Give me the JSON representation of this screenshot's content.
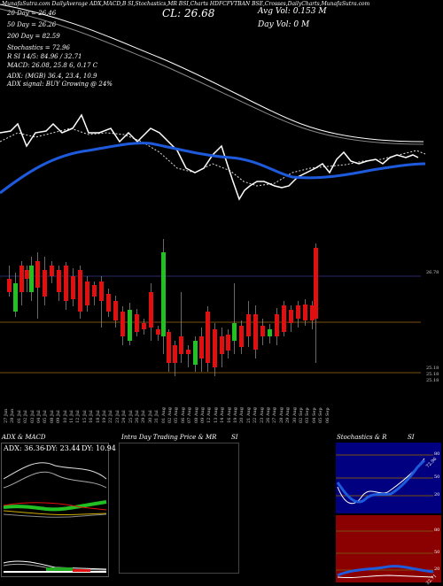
{
  "header": {
    "line1": "MunafaSutra.com DailyAverage ADX,MACD,B SI,Stochastics,MR BSI,Charts HDFCFVTBAN BSE,Crosses,DailyCharts,MunafaSutra.com",
    "cl": "CL: 26.68",
    "avg_vol": "Avg Vol: 0.153  M",
    "day_vol": "Day Vol: 0   M",
    "dma20": "20  Day = 26.46",
    "dma50": "50  Day = 26.26",
    "dma200": "200  Day = 82.59",
    "stochastics": "Stochastics = 72.96",
    "rsi": "R       SI 14/5: 84.96  /  32.71",
    "macd": "MACD: 26.08, 25.8          6, 0.17 C",
    "adx": "ADX:                         (MGB) 36.4, 23.4, 10.9",
    "adx_signal": "ADX  signal:                   BUY Growing @ 24%"
  },
  "price_labels": {
    "upper": "26.78",
    "lower1": "25.18",
    "lower2": "25.18",
    "lower3": "25.18"
  },
  "dates": [
    "27 Jun",
    "28 Jun",
    "01 Jul",
    "02 Jul",
    "03 Jul",
    "04 Jul",
    "05 Jul",
    "08 Jul",
    "09 Jul",
    "10 Jul",
    "11 Jul",
    "12 Jul",
    "15 Jul",
    "16 Jul",
    "18 Jul",
    "19 Jul",
    "22 Jul",
    "23 Jul",
    "24 Jul",
    "25 Jul",
    "26 Jul",
    "29 Jul",
    "30 Jul",
    "31 Jul",
    "01 Aug",
    "02 Aug",
    "05 Aug",
    "06 Aug",
    "07 Aug",
    "08 Aug",
    "09 Aug",
    "12 Aug",
    "13 Aug",
    "14 Aug",
    "16 Aug",
    "19 Aug",
    "20 Aug",
    "21 Aug",
    "22 Aug",
    "23 Aug",
    "26 Aug",
    "27 Aug",
    "28 Aug",
    "29 Aug",
    "30 Aug",
    "02 Sep",
    "03 Sep",
    "04 Sep",
    "05 Sep",
    "06 Sep"
  ],
  "panels": {
    "adx_macd_title": "ADX  & MACD",
    "adx_readout": {
      "adx": "ADX: 36.36",
      "minus_dy": "-DY: 23.44",
      "plus_dy": "DY: 10.94"
    },
    "intraday_title": "Intra  Day Trading Price  & MR",
    "intraday_si": "SI",
    "stoch_title": "Stochastics & R",
    "stoch_si": "SI",
    "stoch_ticks": [
      "80",
      "50",
      "20"
    ],
    "stoch_value": "72.96",
    "rsi_ticks": [
      "80",
      "50",
      "20"
    ],
    "rsi_value": "32.71"
  },
  "colors": {
    "up": "#22c022",
    "down": "#e01010",
    "dma": "#1e5adc",
    "macd_green": "#22aa22"
  },
  "chart_data": {
    "type": "candlestick",
    "title": "",
    "candles_visual_note": "",
    "bars": [
      {
        "d": "up",
        "o": 60,
        "c": 40,
        "h": 30,
        "l": 70
      },
      {
        "d": "down",
        "o": 45,
        "c": 55,
        "h": 35,
        "l": 60
      },
      {
        "d": "down",
        "o": 35,
        "c": 48,
        "h": 28,
        "l": 55
      },
      {
        "d": "down",
        "o": 40,
        "c": 60,
        "h": 30,
        "l": 65
      },
      {
        "d": "up",
        "o": 70,
        "c": 55,
        "h": 45,
        "l": 85
      },
      {
        "d": "down",
        "o": 25,
        "c": 40,
        "h": 15,
        "l": 48
      },
      {
        "d": "down",
        "o": 30,
        "c": 42,
        "h": 20,
        "l": 50
      },
      {
        "d": "down",
        "o": 25,
        "c": 52,
        "h": 20,
        "l": 58
      },
      {
        "d": "up",
        "o": 65,
        "c": 52,
        "h": 45,
        "l": 70
      }
    ]
  }
}
